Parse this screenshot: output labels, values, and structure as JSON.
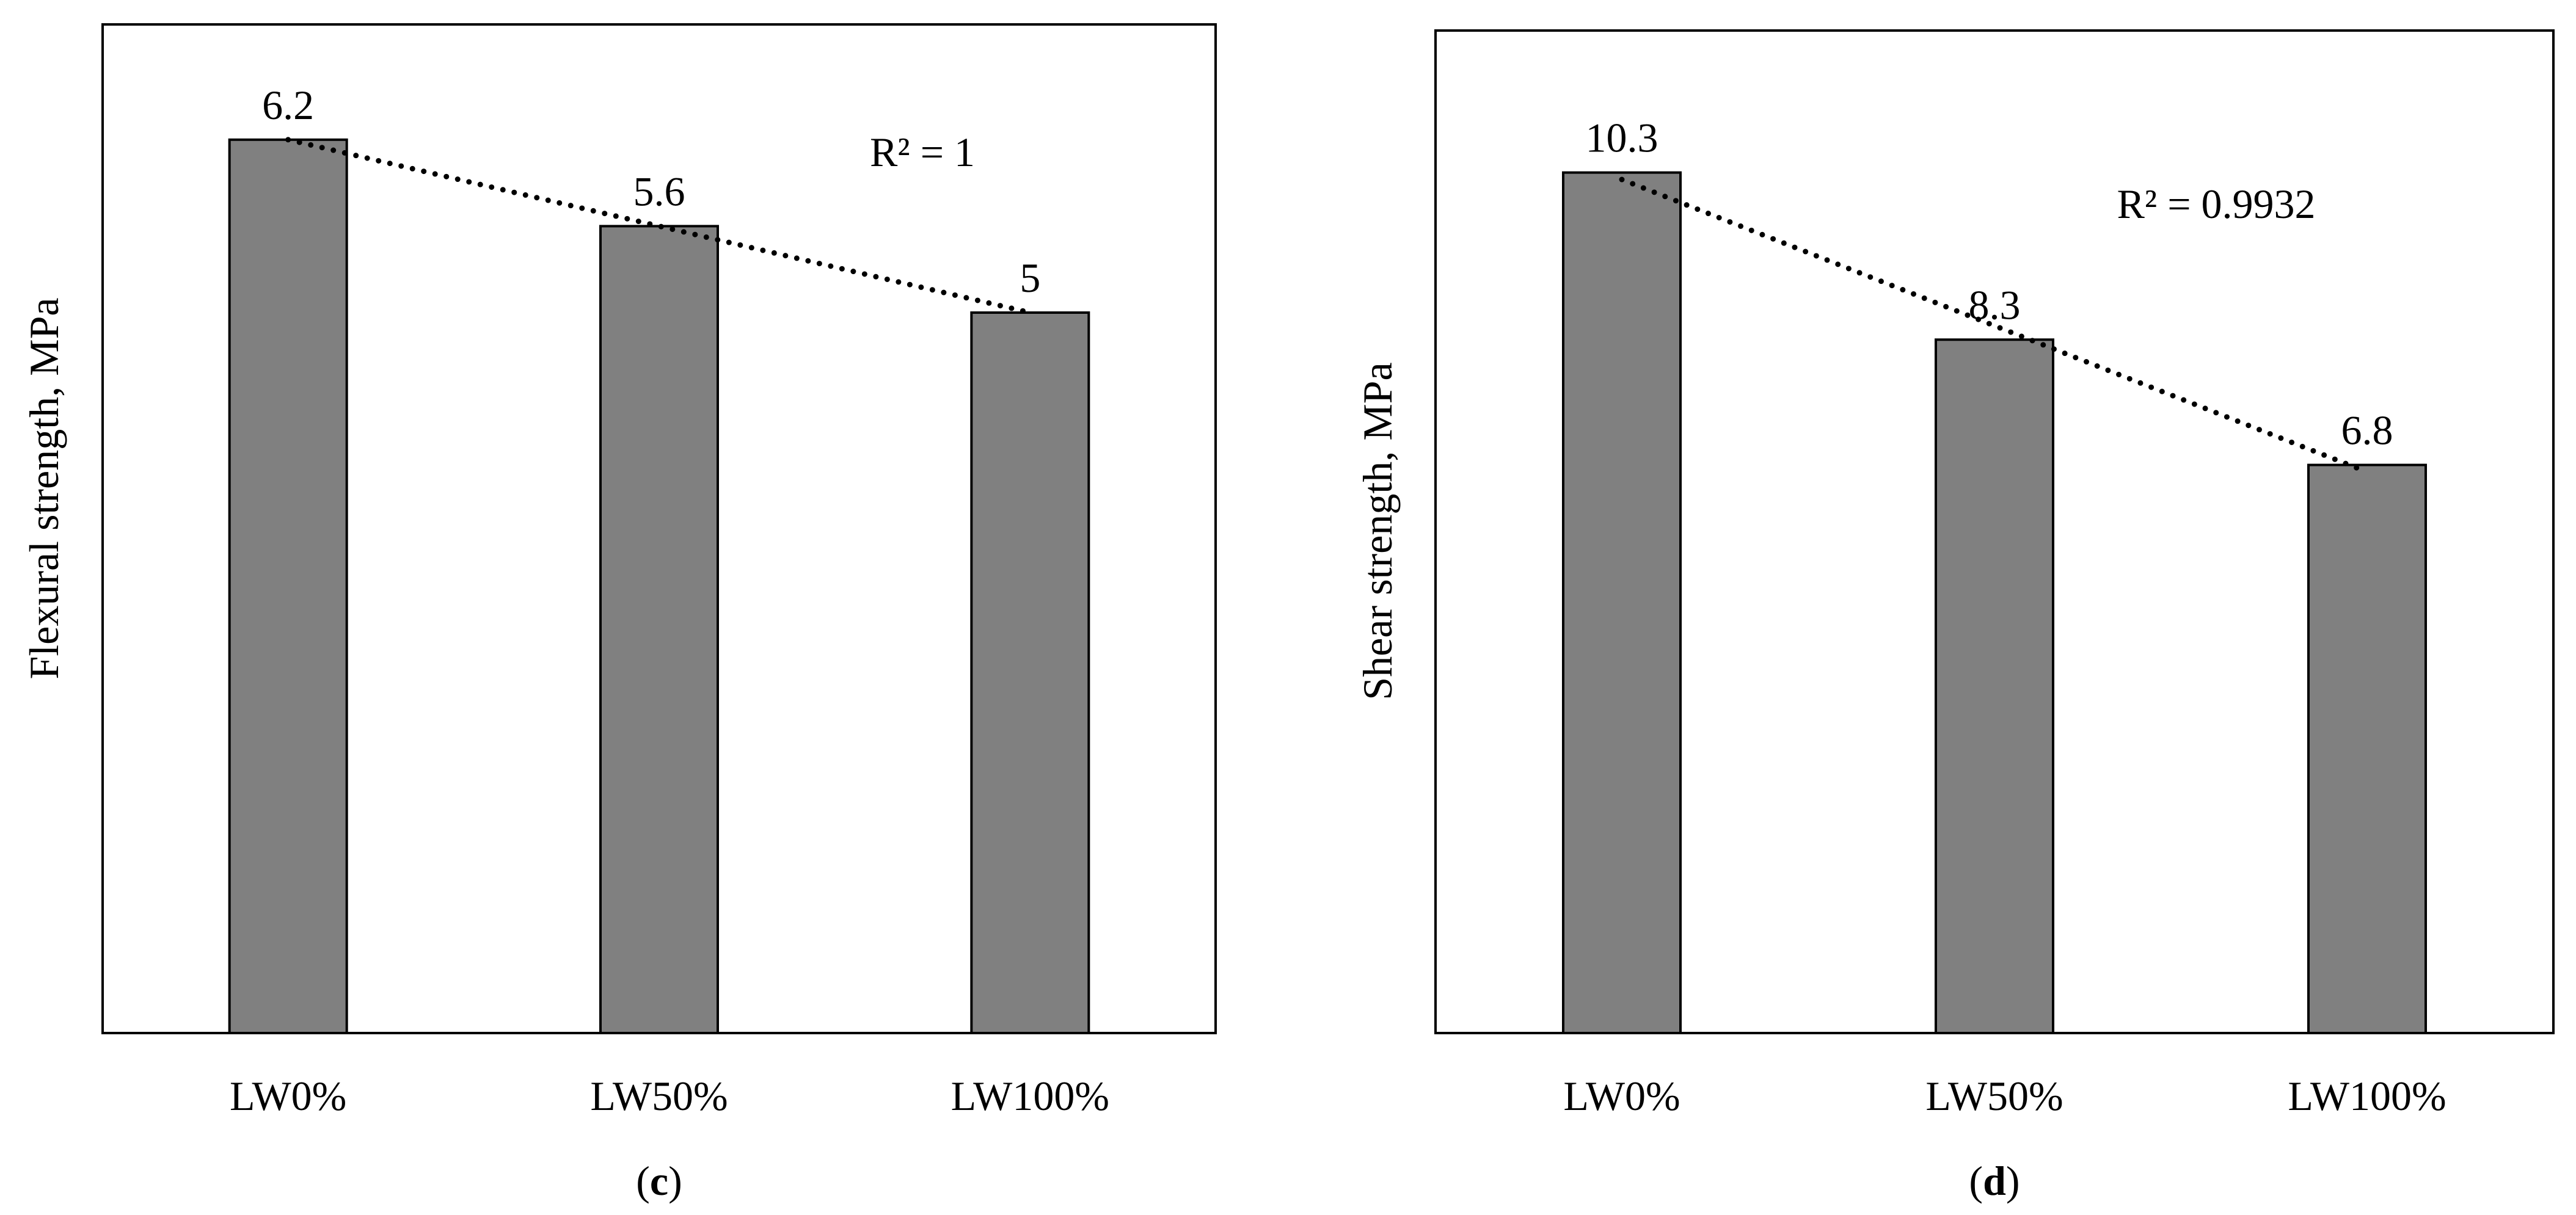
{
  "colors": {
    "bar_fill": "#808080",
    "bar_edge": "#000000",
    "trendline": "#000000",
    "background": "#ffffff"
  },
  "chart_data": [
    {
      "type": "bar",
      "panel": "c",
      "caption_open": "(",
      "caption_letter": "c",
      "caption_close": ")",
      "categories": [
        "LW0%",
        "LW50%",
        "LW100%"
      ],
      "values": [
        6.2,
        5.6,
        5
      ],
      "value_labels": [
        "6.2",
        "5.6",
        "5"
      ],
      "ylabel": "Flexural strength, MPa",
      "xlabel": "",
      "ylim": [
        0,
        7
      ],
      "trendline": {
        "type": "linear",
        "style": "dotted",
        "r_squared_label": "R² = 1"
      },
      "grid": false,
      "y_tick_labels_shown": false
    },
    {
      "type": "bar",
      "panel": "d",
      "caption_open": "(",
      "caption_letter": "d",
      "caption_close": ")",
      "categories": [
        "LW0%",
        "LW50%",
        "LW100%"
      ],
      "values": [
        10.3,
        8.3,
        6.8
      ],
      "value_labels": [
        "10.3",
        "8.3",
        "6.8"
      ],
      "ylabel": "Shear strength, MPa",
      "xlabel": "",
      "ylim": [
        0,
        12
      ],
      "trendline": {
        "type": "linear",
        "style": "dotted",
        "r_squared_label": "R² = 0.9932"
      },
      "grid": false,
      "y_tick_labels_shown": false
    }
  ]
}
